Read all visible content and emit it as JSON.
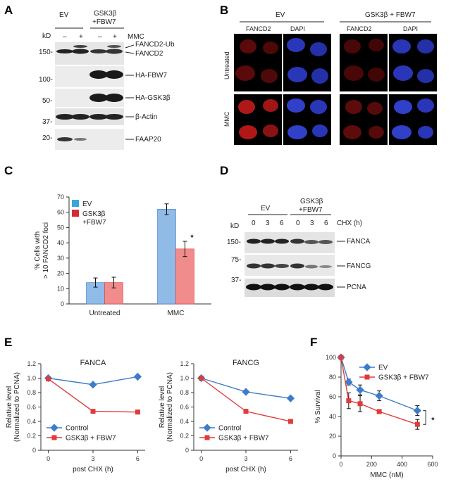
{
  "panels": {
    "A": {
      "letter": "A",
      "kd": "kD",
      "groups": [
        "EV",
        "GSK3β",
        "+FBW7"
      ],
      "treatment": "MMC",
      "lane_signs": [
        "–",
        "+",
        "–",
        "+"
      ],
      "markers": [
        "150-",
        "100-",
        "50-",
        "37-",
        "20-"
      ],
      "bands": [
        "FANCD2-Ub",
        "FANCD2",
        "HA-FBW7",
        "HA-GSK3β",
        "β-Actin",
        "FAAP20"
      ]
    },
    "B": {
      "letter": "B",
      "groups": [
        "EV",
        "GSK3β + FBW7"
      ],
      "channels": [
        "FANCD2",
        "DAPI",
        "FANCD2",
        "DAPI"
      ],
      "rows": [
        "Untreated",
        "MMC"
      ]
    },
    "C": {
      "letter": "C"
    },
    "D": {
      "letter": "D",
      "kd": "kD",
      "groups": [
        "EV",
        "GSK3β",
        "+FBW7"
      ],
      "cond": "CHX (h)",
      "lanes": [
        "0",
        "3",
        "6",
        "0",
        "3",
        "6"
      ],
      "markers": [
        "150-",
        "75-",
        "37-"
      ],
      "bands": [
        "FANCA",
        "FANCG",
        "PCNA"
      ]
    },
    "E": {
      "letter": "E"
    },
    "F": {
      "letter": "F"
    }
  },
  "colors": {
    "blue": "#3d7cc9",
    "red": "#e03b3b",
    "bar_blue": "#8fbbe6",
    "bar_red": "#f08c8c",
    "nucleus_red": "#b01818",
    "nucleus_blue": "#3040c8"
  },
  "chart_data": [
    {
      "id": "C",
      "type": "bar",
      "categories": [
        "Untreated",
        "MMC"
      ],
      "series": [
        {
          "name": "EV",
          "values": [
            14,
            62
          ],
          "errors": [
            3,
            3.5
          ]
        },
        {
          "name": "GSK3β +FBW7",
          "values": [
            14,
            36
          ],
          "errors": [
            3.5,
            5
          ]
        }
      ],
      "legend": [
        "EV",
        "GSK3β",
        "+FBW7"
      ],
      "ylabel": [
        "% Cells with",
        "> 10 FANCD2 foci"
      ],
      "ylim": [
        0,
        70
      ],
      "yticks": [
        0,
        10,
        20,
        30,
        40,
        50,
        60,
        70
      ],
      "annotation": "*"
    },
    {
      "id": "E1",
      "type": "line",
      "title": "FANCA",
      "x": [
        0,
        3,
        6
      ],
      "series": [
        {
          "name": "Control",
          "values": [
            1.0,
            0.91,
            1.02
          ]
        },
        {
          "name": "GSK3β + FBW7",
          "values": [
            0.99,
            0.54,
            0.53
          ]
        }
      ],
      "xlabel": "post CHX (h)",
      "ylabel": [
        "Relative level",
        "(Normalized to PCNA)"
      ],
      "ylim": [
        0,
        1.2
      ],
      "yticks": [
        "0",
        "0.2",
        "0.4",
        "0.6",
        "0.8",
        "1.0",
        "1.2"
      ],
      "xticks": [
        0,
        3,
        6
      ]
    },
    {
      "id": "E2",
      "type": "line",
      "title": "FANCG",
      "x": [
        0,
        3,
        6
      ],
      "series": [
        {
          "name": "Control",
          "values": [
            1.0,
            0.81,
            0.72
          ]
        },
        {
          "name": "GSK3β + FBW7",
          "values": [
            1.0,
            0.54,
            0.4
          ]
        }
      ],
      "xlabel": "post CHX (h)",
      "ylabel": [
        "Relative level",
        "(Normalized to PCNA)"
      ],
      "ylim": [
        0,
        1.2
      ],
      "yticks": [
        "0",
        "0.2",
        "0.4",
        "0.6",
        "0.8",
        "1.0",
        "1.2"
      ],
      "xticks": [
        0,
        3,
        6
      ]
    },
    {
      "id": "F",
      "type": "line",
      "x": [
        0,
        50,
        125,
        250,
        500
      ],
      "series": [
        {
          "name": "EV",
          "values": [
            100,
            75,
            67,
            61,
            46
          ],
          "errors": [
            0,
            3,
            5,
            5,
            5
          ]
        },
        {
          "name": "GSK3β + FBW7",
          "values": [
            100,
            56,
            53,
            45,
            32
          ],
          "errors": [
            0,
            8,
            8,
            2,
            5
          ]
        }
      ],
      "xlabel": "MMC (nM)",
      "ylabel": "% Survival",
      "xlim": [
        0,
        600
      ],
      "ylim": [
        0,
        100
      ],
      "xticks": [
        0,
        200,
        400,
        600
      ],
      "yticks": [
        0,
        20,
        40,
        60,
        80,
        100
      ],
      "annotation": "*"
    }
  ]
}
